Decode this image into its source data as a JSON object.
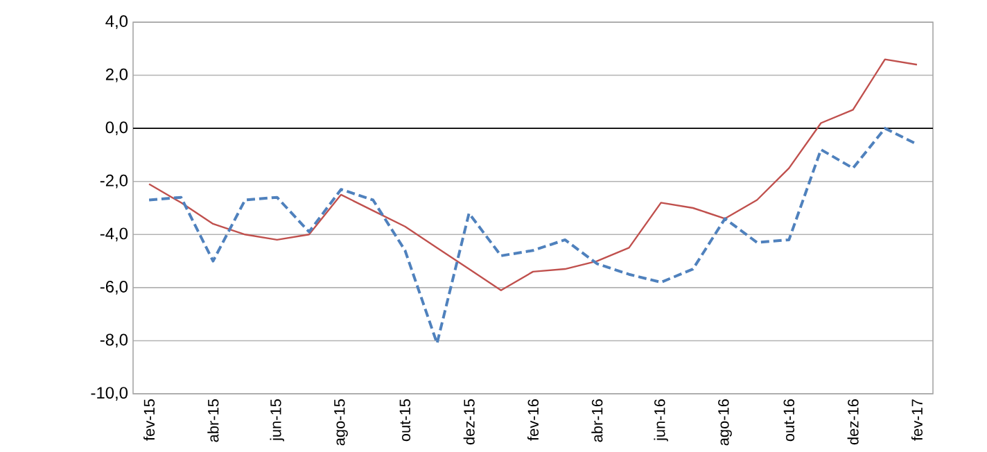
{
  "chart_data": {
    "type": "line",
    "categories": [
      "fev-15",
      null,
      "abr-15",
      null,
      "jun-15",
      null,
      "ago-15",
      null,
      "out-15",
      null,
      "dez-15",
      null,
      "fev-16",
      null,
      "abr-16",
      null,
      "jun-16",
      null,
      "ago-16",
      null,
      "out-16",
      null,
      "dez-16",
      null,
      "fev-17"
    ],
    "series": [
      {
        "color": "#c0504d",
        "line_style": "solid",
        "values": [
          -2.1,
          -2.8,
          -3.6,
          -4.0,
          -4.2,
          -4.0,
          -2.5,
          -3.1,
          -3.7,
          -4.5,
          -5.3,
          -6.1,
          -5.4,
          -5.3,
          -5.0,
          -4.5,
          -2.8,
          -3.0,
          -3.4,
          -2.7,
          -1.5,
          0.2,
          0.7,
          2.6,
          2.4
        ]
      },
      {
        "color": "#4f81bd",
        "line_style": "dashed",
        "values": [
          -2.7,
          -2.6,
          -5.0,
          -2.7,
          -2.6,
          -3.9,
          -2.3,
          -2.7,
          -4.6,
          -8.1,
          -3.2,
          -4.8,
          -4.6,
          -4.2,
          -5.1,
          -5.5,
          -5.8,
          -5.3,
          -3.4,
          -4.3,
          -4.2,
          -0.8,
          -1.5,
          0.0,
          -0.6
        ]
      }
    ],
    "ylim": [
      -10,
      4
    ],
    "yticks": [
      {
        "value": -10,
        "label": "-10,0"
      },
      {
        "value": -8,
        "label": "-8,0"
      },
      {
        "value": -6,
        "label": "-6,0"
      },
      {
        "value": -4,
        "label": "-4,0"
      },
      {
        "value": -2,
        "label": "-2,0"
      },
      {
        "value": 0,
        "label": "0,0"
      },
      {
        "value": 2,
        "label": "2,0"
      },
      {
        "value": 4,
        "label": "4,0"
      }
    ],
    "grid": "y"
  }
}
